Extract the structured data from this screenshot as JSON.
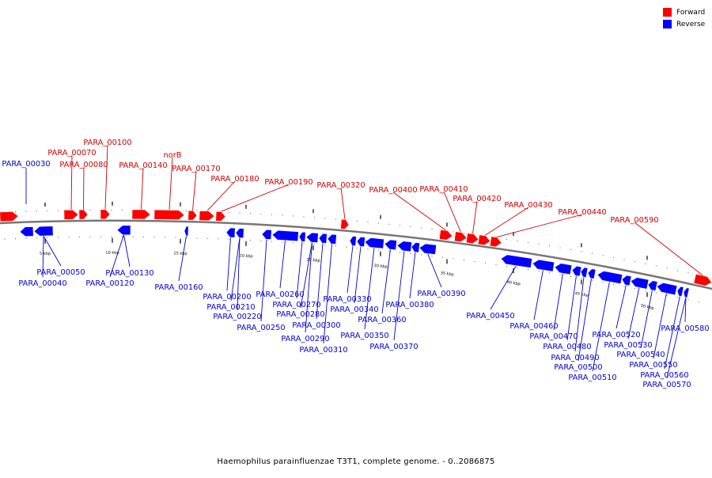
{
  "caption": "Haemophilus parainfluenzae T3T1, complete genome. - 0..2086875",
  "legend": [
    {
      "label": "Forward",
      "color": "#ff0000"
    },
    {
      "label": "Reverse",
      "color": "#0000ff"
    }
  ],
  "colors": {
    "forward": "#ff0000",
    "reverse": "#0000ff",
    "forward_label": "#cc0000",
    "reverse_label": "#0000cc",
    "backbone": "#777777"
  },
  "scale_labels": [
    "5 kbp",
    "10 kbp",
    "15 kbp",
    "20 kbp",
    "25 kbp",
    "30 kbp",
    "35 kbp",
    "40 kbp",
    "45 kbp",
    "50 kbp"
  ],
  "forward_labels": [
    "PARA_00070",
    "PARA_00080",
    "PARA_00100",
    "PARA_00140",
    "norB",
    "PARA_00170",
    "PARA_00180",
    "PARA_00190",
    "PARA_00320",
    "PARA_00400",
    "PARA_00410",
    "PARA_00420",
    "PARA_00430",
    "PARA_00440",
    "PARA_00590"
  ],
  "reverse_labels": [
    "PARA_00030",
    "PARA_00040",
    "PARA_00050",
    "PARA_00120",
    "PARA_00130",
    "PARA_00160",
    "PARA_00200",
    "PARA_00210",
    "PARA_00220",
    "PARA_00250",
    "PARA_00260",
    "PARA_00270",
    "PARA_00280",
    "PARA_00290",
    "PARA_00300",
    "PARA_00310",
    "PARA_00330",
    "PARA_00340",
    "PARA_00350",
    "PARA_00360",
    "PARA_00370",
    "PARA_00380",
    "PARA_00390",
    "PARA_00450",
    "PARA_00460",
    "PARA_00470",
    "PARA_00480",
    "PARA_00490",
    "PARA_00500",
    "PARA_00510",
    "PARA_00520",
    "PARA_00530",
    "PARA_00540",
    "PARA_00550",
    "PARA_00560",
    "PARA_00570",
    "PARA_00580"
  ]
}
